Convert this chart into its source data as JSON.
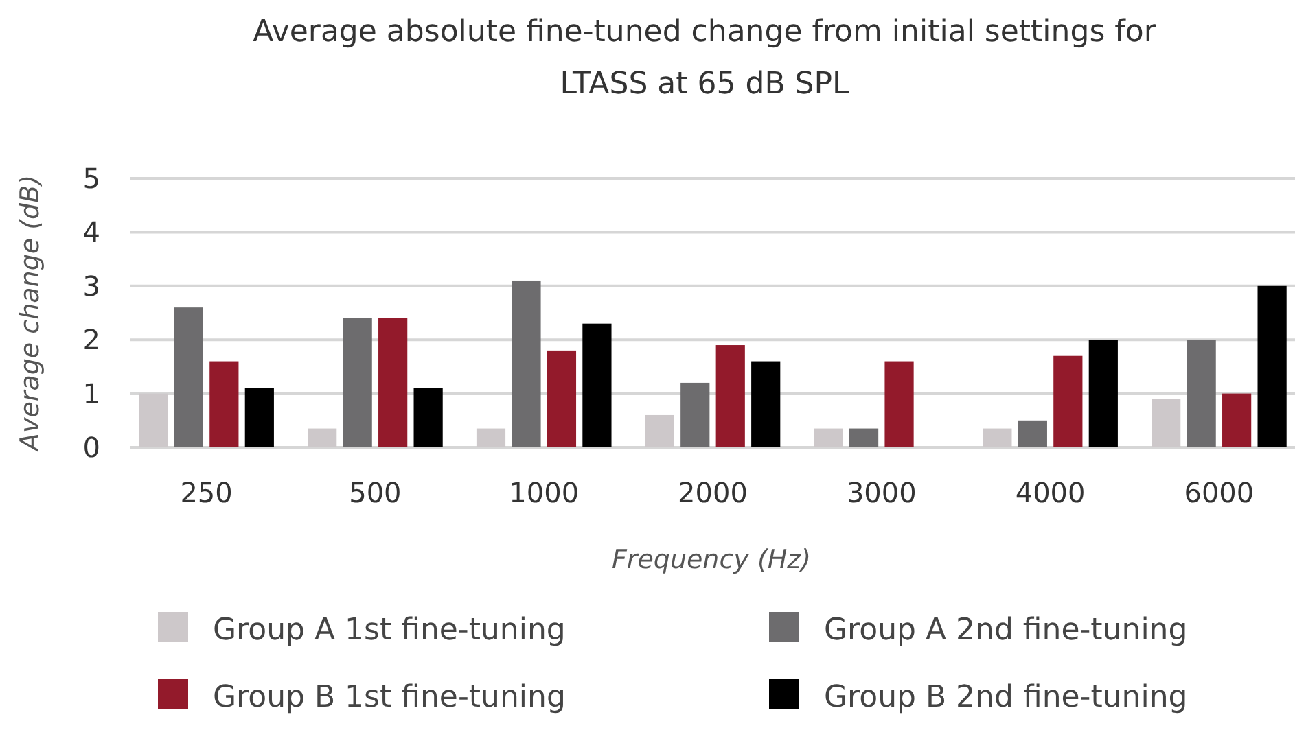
{
  "chart_data": {
    "type": "bar",
    "title": "Average absolute fine-tuned change from initial settings for LTASS at 65 dB SPL",
    "xlabel": "Frequency (Hz)",
    "ylabel": "Average change (dB)",
    "categories": [
      "250",
      "500",
      "1000",
      "2000",
      "3000",
      "4000",
      "6000"
    ],
    "series": [
      {
        "name": "Group A 1st fine-tuning",
        "color": "#cdc8ca",
        "values": [
          1.0,
          0.35,
          0.35,
          0.6,
          0.35,
          0.35,
          0.9
        ]
      },
      {
        "name": "Group A 2nd fine-tuning",
        "color": "#6d6c6e",
        "values": [
          2.6,
          2.4,
          3.1,
          1.2,
          0.35,
          0.5,
          2.0
        ]
      },
      {
        "name": "Group B 1st fine-tuning",
        "color": "#931a2b",
        "values": [
          1.6,
          2.4,
          1.8,
          1.9,
          1.6,
          1.7,
          1.0
        ]
      },
      {
        "name": "Group B 2nd fine-tuning",
        "color": "#000000",
        "values": [
          1.1,
          1.1,
          2.3,
          1.6,
          null,
          2.0,
          3.0
        ]
      }
    ],
    "ylim": [
      0,
      5
    ],
    "yticks": [
      0,
      1,
      2,
      3,
      4,
      5
    ],
    "grid": "y",
    "legend": "bottom"
  }
}
